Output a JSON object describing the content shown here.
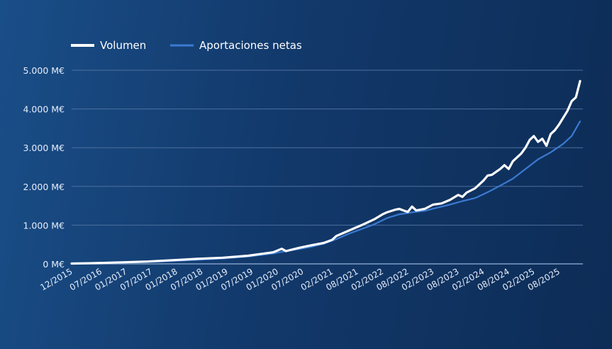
{
  "chart_data": {
    "type": "line",
    "title": "",
    "xlabel": "",
    "ylabel": "",
    "ylim": [
      0,
      5000
    ],
    "yticks": [
      0,
      1000,
      2000,
      3000,
      4000,
      5000
    ],
    "ytick_labels": [
      "0 M€",
      "1.000 M€",
      "2.000 M€",
      "3.000 M€",
      "4.000 M€",
      "5.000 M€"
    ],
    "xlim": [
      "2015-12",
      "2026-01"
    ],
    "xtick_labels": [
      "12/2015",
      "07/2016",
      "01/2017",
      "07/2017",
      "01/2018",
      "07/2018",
      "01/2019",
      "07/2019",
      "01/2020",
      "07/2020",
      "02/2021",
      "08/2021",
      "02/2022",
      "08/2022",
      "02/2023",
      "08/2023",
      "02/2024",
      "08/2024",
      "02/2025",
      "08/2025"
    ],
    "grid": true,
    "legend": "top-left",
    "series": [
      {
        "name": "Volumen",
        "color": "#ffffff",
        "points": [
          [
            "2015-12",
            10
          ],
          [
            "2016-06",
            20
          ],
          [
            "2016-12",
            40
          ],
          [
            "2017-06",
            60
          ],
          [
            "2017-12",
            95
          ],
          [
            "2018-06",
            130
          ],
          [
            "2018-12",
            160
          ],
          [
            "2019-06",
            210
          ],
          [
            "2019-12",
            300
          ],
          [
            "2020-02",
            390
          ],
          [
            "2020-03",
            330
          ],
          [
            "2020-06",
            410
          ],
          [
            "2020-09",
            480
          ],
          [
            "2020-12",
            540
          ],
          [
            "2021-02",
            620
          ],
          [
            "2021-03",
            720
          ],
          [
            "2021-06",
            860
          ],
          [
            "2021-09",
            1000
          ],
          [
            "2021-12",
            1150
          ],
          [
            "2022-02",
            1280
          ],
          [
            "2022-03",
            1330
          ],
          [
            "2022-05",
            1400
          ],
          [
            "2022-06",
            1420
          ],
          [
            "2022-07",
            1380
          ],
          [
            "2022-08",
            1340
          ],
          [
            "2022-09",
            1480
          ],
          [
            "2022-10",
            1380
          ],
          [
            "2022-12",
            1420
          ],
          [
            "2023-02",
            1530
          ],
          [
            "2023-04",
            1560
          ],
          [
            "2023-06",
            1650
          ],
          [
            "2023-08",
            1780
          ],
          [
            "2023-09",
            1730
          ],
          [
            "2023-10",
            1840
          ],
          [
            "2023-12",
            1950
          ],
          [
            "2024-02",
            2150
          ],
          [
            "2024-03",
            2280
          ],
          [
            "2024-04",
            2300
          ],
          [
            "2024-06",
            2450
          ],
          [
            "2024-07",
            2550
          ],
          [
            "2024-08",
            2450
          ],
          [
            "2024-09",
            2650
          ],
          [
            "2024-11",
            2850
          ],
          [
            "2024-12",
            3000
          ],
          [
            "2025-01",
            3200
          ],
          [
            "2025-02",
            3300
          ],
          [
            "2025-03",
            3150
          ],
          [
            "2025-04",
            3230
          ],
          [
            "2025-05",
            3050
          ],
          [
            "2025-06",
            3350
          ],
          [
            "2025-07",
            3450
          ],
          [
            "2025-08",
            3600
          ],
          [
            "2025-10",
            3950
          ],
          [
            "2025-11",
            4200
          ],
          [
            "2025-12",
            4300
          ],
          [
            "2026-01",
            4720
          ]
        ]
      },
      {
        "name": "Aportaciones netas",
        "color": "#3b7ad2",
        "points": [
          [
            "2015-12",
            5
          ],
          [
            "2016-06",
            15
          ],
          [
            "2016-12",
            30
          ],
          [
            "2017-06",
            50
          ],
          [
            "2017-12",
            75
          ],
          [
            "2018-06",
            105
          ],
          [
            "2018-12",
            140
          ],
          [
            "2019-06",
            190
          ],
          [
            "2019-12",
            270
          ],
          [
            "2020-03",
            330
          ],
          [
            "2020-06",
            380
          ],
          [
            "2020-09",
            440
          ],
          [
            "2020-12",
            520
          ],
          [
            "2021-03",
            640
          ],
          [
            "2021-06",
            780
          ],
          [
            "2021-09",
            900
          ],
          [
            "2021-12",
            1020
          ],
          [
            "2022-03",
            1180
          ],
          [
            "2022-06",
            1280
          ],
          [
            "2022-09",
            1330
          ],
          [
            "2022-12",
            1370
          ],
          [
            "2023-03",
            1450
          ],
          [
            "2023-06",
            1530
          ],
          [
            "2023-09",
            1620
          ],
          [
            "2023-12",
            1700
          ],
          [
            "2024-03",
            1850
          ],
          [
            "2024-06",
            2020
          ],
          [
            "2024-09",
            2200
          ],
          [
            "2024-12",
            2450
          ],
          [
            "2025-03",
            2700
          ],
          [
            "2025-06",
            2880
          ],
          [
            "2025-09",
            3100
          ],
          [
            "2025-11",
            3300
          ],
          [
            "2026-01",
            3680
          ]
        ]
      }
    ]
  }
}
